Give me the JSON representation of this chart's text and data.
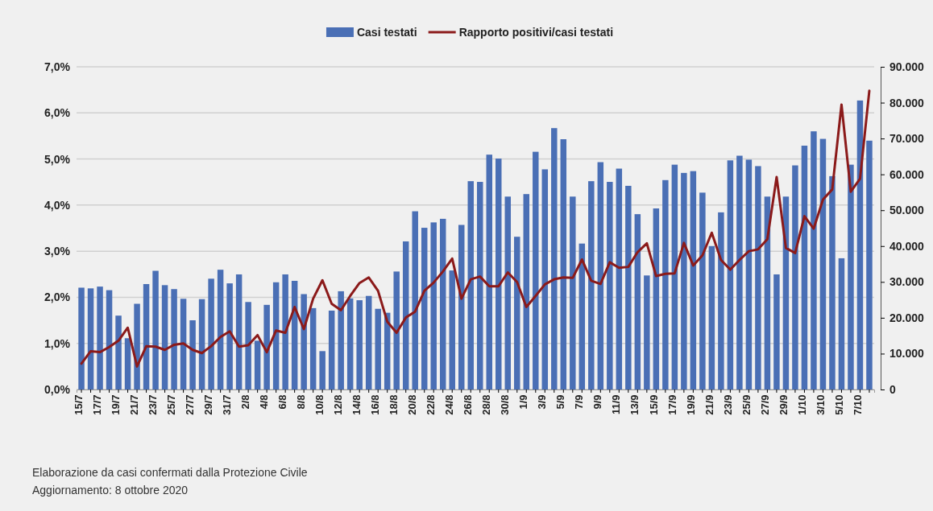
{
  "chart_data": {
    "type": "bar",
    "categories": [
      "15/7",
      null,
      "17/7",
      null,
      "19/7",
      null,
      "21/7",
      null,
      "23/7",
      null,
      "25/7",
      null,
      "27/7",
      null,
      "29/7",
      null,
      "31/7",
      null,
      "2/8",
      null,
      "4/8",
      null,
      "6/8",
      null,
      "8/8",
      null,
      "10/8",
      null,
      "12/8",
      null,
      "14/8",
      null,
      "16/8",
      null,
      "18/8",
      null,
      "20/8",
      null,
      "22/8",
      null,
      "24/8",
      null,
      "26/8",
      null,
      "28/8",
      null,
      "30/8",
      null,
      "1/9",
      null,
      "3/9",
      null,
      "5/9",
      null,
      "7/9",
      null,
      "9/9",
      null,
      "11/9",
      null,
      "13/9",
      null,
      "15/9",
      null,
      "17/9",
      null,
      "19/9",
      null,
      "21/9",
      null,
      "23/9",
      null,
      "25/9",
      null,
      "27/9",
      null,
      "29/9",
      null,
      "1/10",
      null,
      "3/10",
      null,
      "5/10",
      null,
      "7/10",
      null
    ],
    "series": [
      {
        "name": "Casi testati",
        "axis": "y2",
        "color": "#4a6fb5",
        "values": [
          28400,
          28200,
          28700,
          27700,
          20600,
          14300,
          23900,
          29400,
          33100,
          29100,
          28000,
          25300,
          19300,
          25200,
          30900,
          33400,
          29600,
          32100,
          24400,
          13600,
          23600,
          29900,
          32100,
          30300,
          26600,
          22700,
          10700,
          22000,
          27400,
          25400,
          24900,
          26100,
          22500,
          21400,
          32900,
          41300,
          49700,
          45100,
          46600,
          47600,
          33200,
          45900,
          58100,
          57900,
          65500,
          64400,
          53800,
          42600,
          54500,
          66300,
          61400,
          72900,
          69800,
          53800,
          40700,
          58100,
          63400,
          57900,
          61600,
          56800,
          48900,
          31800,
          50500,
          58400,
          62700,
          60400,
          60900,
          54900,
          40000,
          49400,
          63900,
          65200,
          64100,
          62300,
          53800,
          32100,
          53800,
          62500,
          68000,
          72000,
          69900,
          59500,
          36600,
          62700,
          80600,
          69400
        ]
      },
      {
        "name": "Rapporto positivi/casi testati",
        "type": "line",
        "axis": "y",
        "color": "#8b1a1a",
        "values": [
          0.56,
          0.83,
          0.81,
          0.92,
          1.06,
          1.34,
          0.5,
          0.94,
          0.93,
          0.86,
          0.97,
          1.0,
          0.86,
          0.79,
          0.94,
          1.14,
          1.26,
          0.93,
          0.96,
          1.18,
          0.81,
          1.28,
          1.23,
          1.79,
          1.31,
          1.97,
          2.37,
          1.86,
          1.72,
          2.03,
          2.31,
          2.43,
          2.14,
          1.47,
          1.23,
          1.56,
          1.69,
          2.14,
          2.32,
          2.56,
          2.84,
          1.97,
          2.39,
          2.45,
          2.24,
          2.24,
          2.54,
          2.33,
          1.79,
          2.03,
          2.28,
          2.39,
          2.43,
          2.42,
          2.82,
          2.36,
          2.29,
          2.76,
          2.64,
          2.66,
          2.98,
          3.17,
          2.46,
          2.51,
          2.52,
          3.18,
          2.69,
          2.91,
          3.4,
          2.81,
          2.6,
          2.81,
          3.0,
          3.04,
          3.26,
          4.61,
          3.07,
          2.96,
          3.76,
          3.49,
          4.12,
          4.34,
          6.18,
          4.29,
          4.57,
          6.48
        ]
      }
    ],
    "ylim": [
      0,
      7
    ],
    "yticks": [
      {
        "value": 0,
        "label": "0,0%"
      },
      {
        "value": 1,
        "label": "1,0%"
      },
      {
        "value": 2,
        "label": "2,0%"
      },
      {
        "value": 3,
        "label": "3,0%"
      },
      {
        "value": 4,
        "label": "4,0%"
      },
      {
        "value": 5,
        "label": "5,0%"
      },
      {
        "value": 6,
        "label": "6,0%"
      },
      {
        "value": 7,
        "label": "7,0%"
      }
    ],
    "y2lim": [
      0,
      90000
    ],
    "y2ticks": [
      0,
      {
        "value": 10000,
        "label": "10.000"
      },
      {
        "value": 20000,
        "label": "20.000"
      },
      {
        "value": 30000,
        "label": "30.000"
      },
      {
        "value": 40000,
        "label": "40.000"
      },
      {
        "value": 50000,
        "label": "50.000"
      },
      {
        "value": 60000,
        "label": "60.000"
      },
      {
        "value": 70000,
        "label": "70.000"
      },
      {
        "value": 80000,
        "label": "80.000"
      },
      {
        "value": 90000,
        "label": "90.000"
      }
    ],
    "grid": "y",
    "legend": "top",
    "line_style": "solid",
    "annotations": [
      "Elaborazione da casi confermati dalla Protezione Civile",
      "Aggiornamento: 8 ottobre 2020"
    ]
  }
}
